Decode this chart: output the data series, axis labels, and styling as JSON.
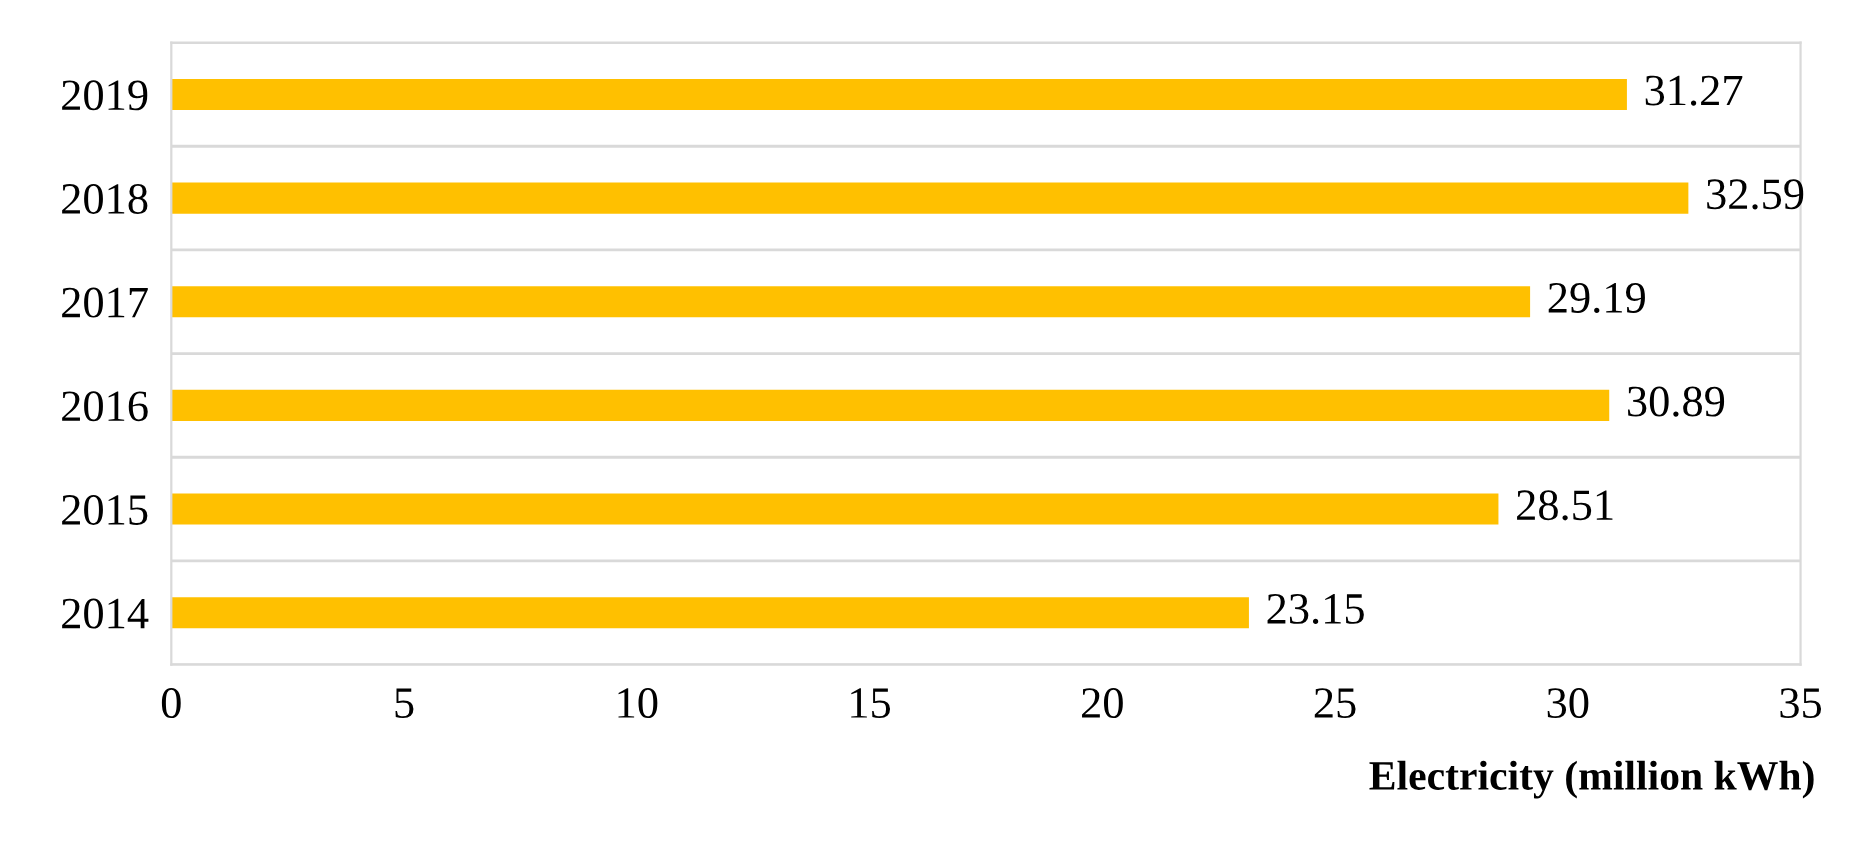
{
  "chart_data": {
    "type": "bar",
    "orientation": "horizontal",
    "xlabel": "Electricity (million kWh)",
    "categories": [
      "2019",
      "2018",
      "2017",
      "2016",
      "2015",
      "2014"
    ],
    "values": [
      31.27,
      32.59,
      29.19,
      30.89,
      28.51,
      23.15
    ],
    "color": "#ffc000",
    "xlim": [
      0,
      35
    ],
    "xticks": [
      0,
      5,
      10,
      15,
      20,
      25,
      30,
      35
    ],
    "data_labels": true,
    "grid": "y"
  }
}
